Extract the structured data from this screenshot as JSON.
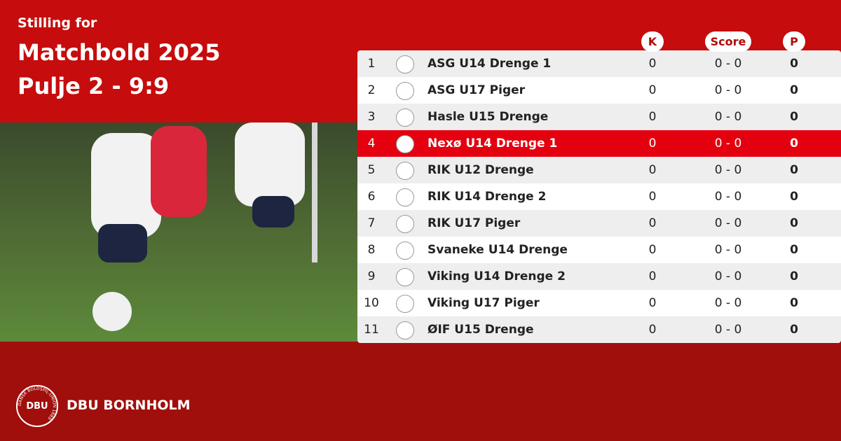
{
  "header": {
    "kicker": "Stilling for",
    "title": "Matchbold 2025",
    "subtitle": "Pulje 2 - 9:9"
  },
  "table": {
    "columns": [
      "K",
      "Score",
      "P"
    ],
    "rows": [
      {
        "rank": 1,
        "team": "ASG U14 Drenge 1",
        "k": 0,
        "score": "0 - 0",
        "p": 0
      },
      {
        "rank": 2,
        "team": "ASG U17 Piger",
        "k": 0,
        "score": "0 - 0",
        "p": 0
      },
      {
        "rank": 3,
        "team": "Hasle U15 Drenge",
        "k": 0,
        "score": "0 - 0",
        "p": 0
      },
      {
        "rank": 4,
        "team": "Nexø U14 Drenge 1",
        "k": 0,
        "score": "0 - 0",
        "p": 0,
        "highlighted": true
      },
      {
        "rank": 5,
        "team": "RIK U12 Drenge",
        "k": 0,
        "score": "0 - 0",
        "p": 0
      },
      {
        "rank": 6,
        "team": "RIK U14 Drenge 2",
        "k": 0,
        "score": "0 - 0",
        "p": 0
      },
      {
        "rank": 7,
        "team": "RIK U17 Piger",
        "k": 0,
        "score": "0 - 0",
        "p": 0
      },
      {
        "rank": 8,
        "team": "Svaneke U14 Drenge",
        "k": 0,
        "score": "0 - 0",
        "p": 0
      },
      {
        "rank": 9,
        "team": "Viking U14 Drenge 2",
        "k": 0,
        "score": "0 - 0",
        "p": 0
      },
      {
        "rank": 10,
        "team": "Viking U17 Piger",
        "k": 0,
        "score": "0 - 0",
        "p": 0
      },
      {
        "rank": 11,
        "team": "ØIF U15 Drenge",
        "k": 0,
        "score": "0 - 0",
        "p": 0
      }
    ]
  },
  "footer": {
    "logo_text": "DBU",
    "logo_ring": "DANSK BOLDSPIL-UNION 1889",
    "org": "DBU BORNHOLM"
  }
}
